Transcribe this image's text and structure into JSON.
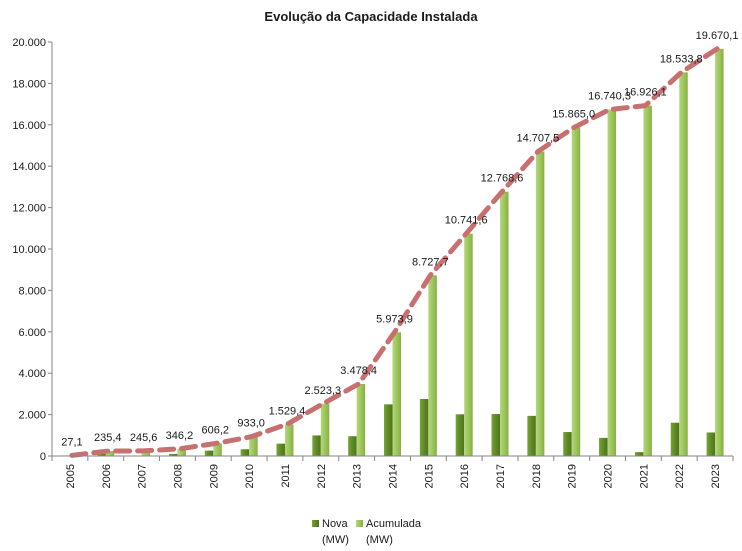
{
  "chart_data": {
    "type": "bar",
    "title": "Evolução da Capacidade Instalada",
    "categories": [
      "2005",
      "2006",
      "2007",
      "2008",
      "2009",
      "2010",
      "2011",
      "2012",
      "2013",
      "2014",
      "2015",
      "2016",
      "2017",
      "2018",
      "2019",
      "2020",
      "2021",
      "2022",
      "2023"
    ],
    "series": [
      {
        "name": "Nova (MW)",
        "legend_lines": [
          "Nova",
          "(MW)"
        ],
        "color": "#5e8a25",
        "values": [
          27.1,
          208.3,
          10.2,
          100.6,
          260.0,
          326.8,
          596.4,
          993.9,
          955.1,
          2495.5,
          2753.8,
          2013.9,
          2027.0,
          1938.9,
          1157.5,
          875.3,
          185.8,
          1607.7,
          1136.3
        ]
      },
      {
        "name": "Acumulada (MW)",
        "legend_lines": [
          "Acumulada",
          "(MW)"
        ],
        "color": "#9dc65c",
        "values": [
          27.1,
          235.4,
          245.6,
          346.2,
          606.2,
          933.0,
          1529.4,
          2523.3,
          3478.4,
          5973.9,
          8727.7,
          10741.6,
          12768.6,
          14707.5,
          15865.0,
          16740.3,
          16926.1,
          18533.8,
          19670.1
        ]
      }
    ],
    "data_labels": [
      "27,1",
      "235,4",
      "245,6",
      "346,2",
      "606,2",
      "933,0",
      "1.529,4",
      "2.523,3",
      "3.478,4",
      "5.973,9",
      "8.727,7",
      "10.741,6",
      "12.768,6",
      "14.707,5",
      "15.865,0",
      "16.740,3",
      "16.926,1",
      "18.533,8",
      "19.670,1"
    ],
    "trend_line": {
      "style": "dashed",
      "color": "#c87070",
      "follows": "Acumulada (MW)"
    },
    "yticks": [
      "0",
      "2.000",
      "4.000",
      "6.000",
      "8.000",
      "10.000",
      "12.000",
      "14.000",
      "16.000",
      "18.000",
      "20.000"
    ],
    "ylim": [
      0,
      20000
    ],
    "grid": false,
    "legend_position": "bottom-center"
  }
}
